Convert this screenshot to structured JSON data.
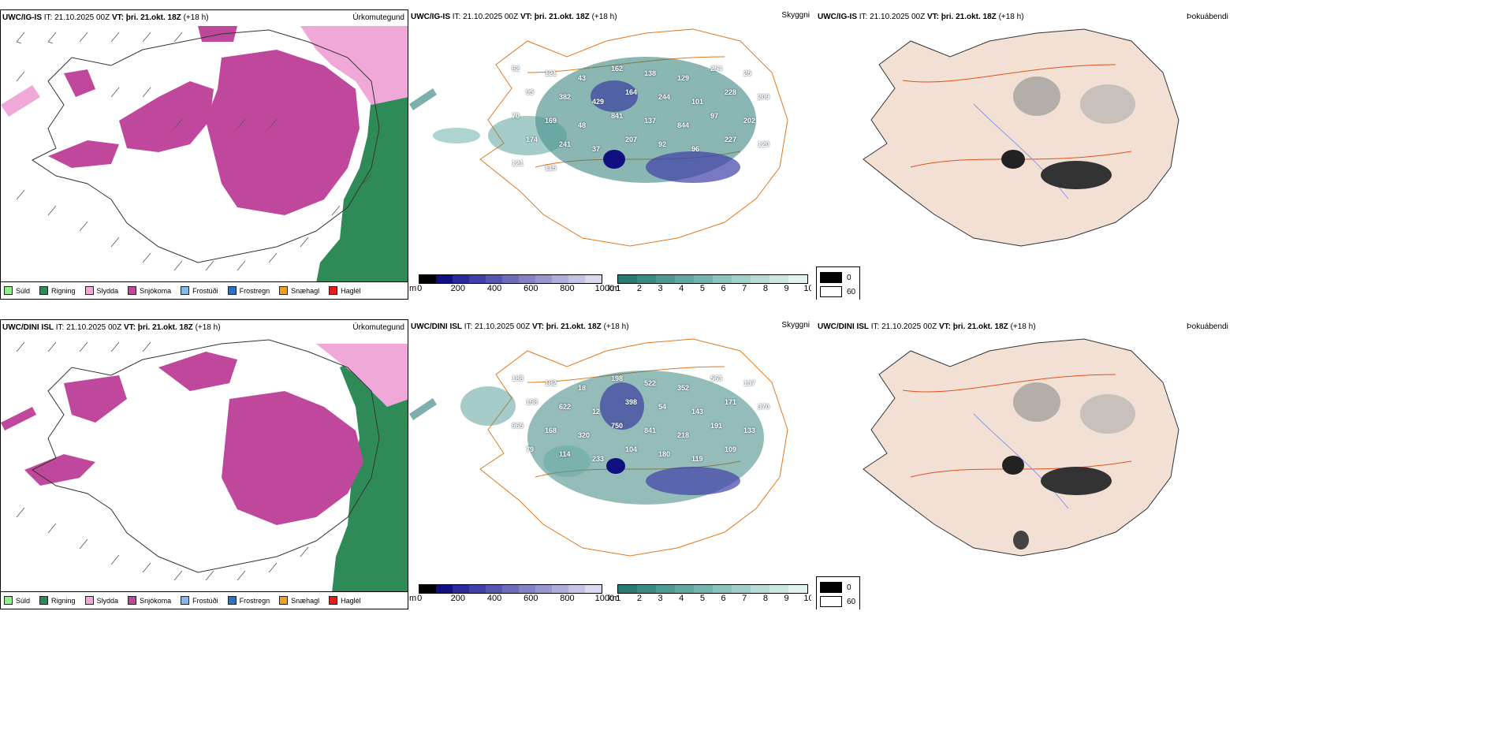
{
  "panels": [
    {
      "model_label": "UWC/IG-IS",
      "it_label": "IT:",
      "it_value": "21.10.2025 00Z",
      "vt_label": "VT:",
      "vt_value": "þri. 21.okt. 18Z",
      "lead": "(+18 h)",
      "title_precip": "Úrkomutegund",
      "title_cloud": "Skyggni",
      "title_fog": "Þokuábendi"
    },
    {
      "model_label": "UWC/DINI ISL",
      "it_label": "IT:",
      "it_value": "21.10.2025 00Z",
      "vt_label": "VT:",
      "vt_value": "þri. 21.okt. 18Z",
      "lead": "(+18 h)",
      "title_precip": "Úrkomutegund",
      "title_cloud": "Skyggni",
      "title_fog": "Þokuábendi"
    }
  ],
  "precip_legend": [
    {
      "label": "Súld",
      "color": "#90ee90"
    },
    {
      "label": "Rigning",
      "color": "#2e8b57"
    },
    {
      "label": "Slydda",
      "color": "#f0a8d8"
    },
    {
      "label": "Snjókoma",
      "color": "#c0489c"
    },
    {
      "label": "Frostúði",
      "color": "#87b8e8"
    },
    {
      "label": "Frostregn",
      "color": "#3070c0"
    },
    {
      "label": "Snæhagl",
      "color": "#f0a020"
    },
    {
      "label": "Haglél",
      "color": "#e02020"
    }
  ],
  "ceiling_scale": {
    "unit": "m",
    "ticks": [
      "0",
      "200",
      "400",
      "600",
      "800",
      "1000"
    ],
    "colors": [
      "#000000",
      "#101080",
      "#2a2a9a",
      "#4040a8",
      "#5656b0",
      "#6c6cba",
      "#8282c4",
      "#9898ce",
      "#aeaed8",
      "#c4c4e2",
      "#dadaee"
    ]
  },
  "visibility_scale": {
    "unit": "km",
    "ticks": [
      "1",
      "2",
      "3",
      "4",
      "5",
      "6",
      "7",
      "8",
      "9",
      "10"
    ],
    "colors": [
      "#2a7a74",
      "#3a8a84",
      "#4c9a94",
      "#60a8a2",
      "#74b4ae",
      "#8ac2bc",
      "#a0ceca",
      "#b6dad6",
      "#cce6e2",
      "#e2f2f0"
    ]
  },
  "fog_legend": [
    {
      "label": "0",
      "color": "#000000"
    },
    {
      "label": "60",
      "color": "#ffffff"
    }
  ],
  "ceiling_labels_top": [
    "62",
    "121",
    "43",
    "162",
    "138",
    "129",
    "254",
    "25",
    "95",
    "382",
    "429",
    "164",
    "244",
    "101",
    "228",
    "209",
    "70",
    "169",
    "48",
    "841",
    "137",
    "844",
    "97",
    "202",
    "174",
    "241",
    "37",
    "207",
    "92",
    "96",
    "227",
    "120",
    "121",
    "115"
  ],
  "ceiling_labels_bottom": [
    "188",
    "182",
    "18",
    "198",
    "522",
    "352",
    "563",
    "137",
    "198",
    "622",
    "12",
    "398",
    "54",
    "143",
    "171",
    "370",
    "965",
    "168",
    "320",
    "750",
    "841",
    "218",
    "191",
    "133",
    "79",
    "114",
    "233",
    "104",
    "180",
    "119",
    "109"
  ]
}
